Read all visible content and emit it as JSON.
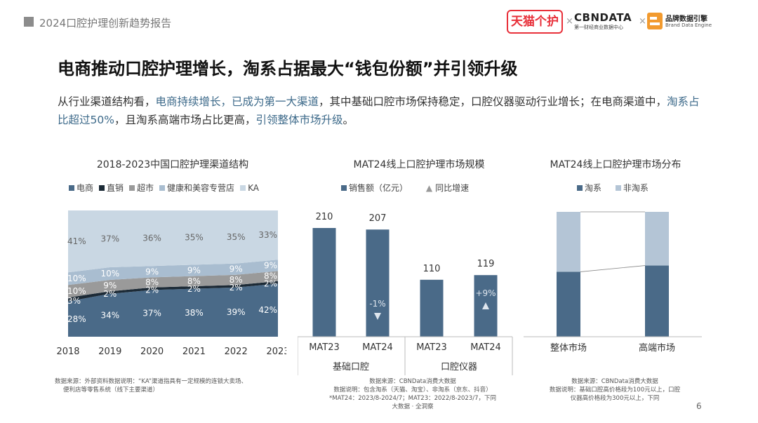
{
  "header": {
    "report_title": "2024口腔护理创新趋势报告",
    "logos": {
      "tmall": "天猫个护",
      "cbn_name": "CBNDATA",
      "cbn_sub": "第一财经商业数据中心",
      "brand_engine_name": "品牌数据引擎",
      "brand_engine_sub": "Brand Data Engine",
      "separator": "×"
    }
  },
  "headline": "电商推动口腔护理增长，淘系占据最大“钱包份额”并引领升级",
  "summary": {
    "p1": "从行业渠道结构看，",
    "h1": "电商持续增长，已成为第一大渠道",
    "p2": "，其中基础口腔市场保持稳定，口腔仪器驱动行业增长；在电商渠道中，",
    "h2": "淘系占比超过50%",
    "p3": "，且淘系高端市场占比更高，",
    "h3": "引领整体市场升级",
    "p4": "。"
  },
  "colors": {
    "ecommerce": "#4a6a88",
    "direct": "#1c2a36",
    "supermarket": "#9a9a9a",
    "health": "#a9bdd0",
    "ka": "#c9d7e3",
    "bar": "#4a6a88",
    "taoxi": "#4a6a88",
    "non_taoxi": "#b4c5d6",
    "highlight": "#3d6a8a"
  },
  "chart_data": [
    {
      "type": "area",
      "title": "2018-2023中国口腔护理渠道结构",
      "categories": [
        "2018",
        "2019",
        "2020",
        "2021",
        "2022",
        "2023"
      ],
      "series": [
        {
          "name": "电商",
          "values": [
            28,
            34,
            37,
            38,
            39,
            42
          ],
          "labels": [
            "28%",
            "34%",
            "37%",
            "38%",
            "39%",
            "42%"
          ]
        },
        {
          "name": "直销",
          "values": [
            3,
            2,
            2,
            2,
            2,
            2
          ],
          "labels": [
            "3%",
            "2%",
            "2%",
            "2%",
            "2%",
            "2%"
          ]
        },
        {
          "name": "超市",
          "values": [
            10,
            9,
            8,
            8,
            8,
            8
          ],
          "labels": [
            "10%",
            "9%",
            "8%",
            "8%",
            "8%",
            "8%"
          ]
        },
        {
          "name": "健康和美容专营店",
          "values": [
            10,
            10,
            9,
            9,
            9,
            9
          ],
          "labels": [
            "10%",
            "10%",
            "9%",
            "9%",
            "9%",
            "9%"
          ]
        },
        {
          "name": "KA",
          "values": [
            41,
            37,
            36,
            35,
            35,
            33
          ],
          "labels": [
            "41%",
            "37%",
            "36%",
            "35%",
            "35%",
            "33%"
          ]
        }
      ],
      "stacked": true,
      "ylim": [
        0,
        100
      ]
    },
    {
      "type": "bar",
      "title": "MAT24线上口腔护理市场规模",
      "legend": [
        "销售额（亿元）",
        "同比增速"
      ],
      "categories": [
        "MAT23",
        "MAT24",
        "MAT23",
        "MAT24"
      ],
      "groups": [
        "基础口腔",
        "口腔仪器"
      ],
      "values": [
        210,
        207,
        110,
        119
      ],
      "value_labels": [
        "210",
        "207",
        "110",
        "119"
      ],
      "growth": [
        null,
        "-1%",
        null,
        "+9%"
      ],
      "growth_direction": [
        null,
        "down",
        null,
        "up"
      ],
      "ylim": [
        0,
        240
      ]
    },
    {
      "type": "bar",
      "title": "MAT24线上口腔护理市场分布",
      "legend": [
        "淘系",
        "非淘系"
      ],
      "categories": [
        "整体市场",
        "高端市场"
      ],
      "series": [
        {
          "name": "淘系",
          "values": [
            52,
            57
          ]
        },
        {
          "name": "非淘系",
          "values": [
            48,
            43
          ]
        }
      ],
      "stacked": true,
      "ylim": [
        0,
        100
      ]
    }
  ],
  "notes": {
    "left_1": "数据来源：外部资料数据说明：“KA”渠道指具有一定规模的连锁大卖场、",
    "left_2": "便利店等零售系统（线下主要渠道）",
    "mid_1": "数据来源：CBNData消费大数据",
    "mid_2": "数据说明：包含淘系（天猫、淘宝）、非淘系（京东、抖音）",
    "mid_3": "*MAT24：2023/8-2024/7；MAT23：2022/8-2023/7，下同",
    "mid_4": "大数据 · 全洞察",
    "right_1": "数据来源：CBNData消费大数据",
    "right_2": "数据说明：基础口腔高价格段为100元以上，口腔",
    "right_3": "仪器高价格段为300元以上，下同"
  },
  "page_number": "6"
}
